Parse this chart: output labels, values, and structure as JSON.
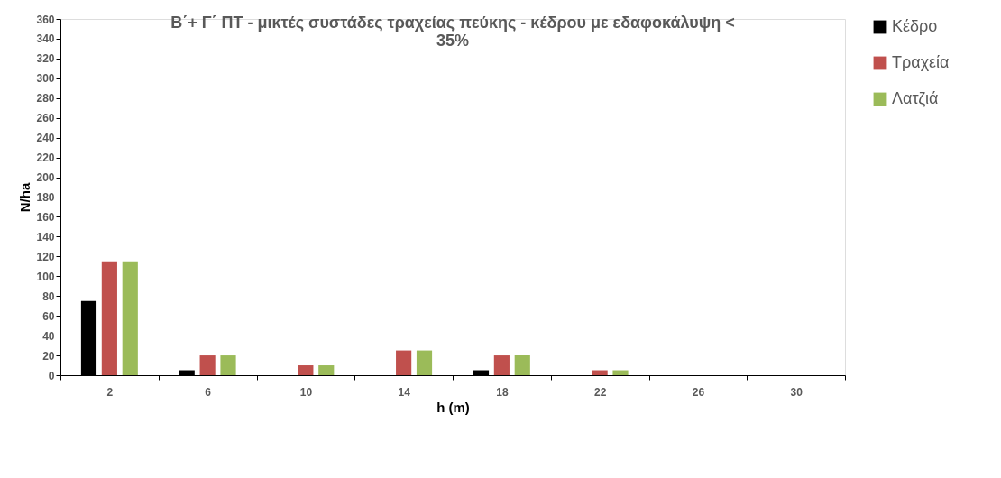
{
  "chart_data": {
    "type": "bar",
    "title": "Β΄+ Γ΄ ΠΤ - μικτές συστάδες τραχείας πεύκης - κέδρου με εδαφοκάλυψη < 35%",
    "xlabel": "h (m)",
    "ylabel": "N/ha",
    "categories": [
      "2",
      "6",
      "10",
      "14",
      "18",
      "22",
      "26",
      "30"
    ],
    "series": [
      {
        "name": "Κέδρο",
        "color": "#000000",
        "values": [
          75,
          5,
          0,
          0,
          5,
          0,
          0,
          0
        ]
      },
      {
        "name": "Τραχεία",
        "color": "#c0504d",
        "values": [
          115,
          20,
          10,
          25,
          20,
          5,
          0,
          0
        ]
      },
      {
        "name": "Λατζιά",
        "color": "#9bbb59",
        "values": [
          115,
          20,
          10,
          25,
          20,
          5,
          0,
          0
        ]
      }
    ],
    "ylim": [
      0,
      360
    ],
    "yticks": [
      0,
      20,
      40,
      60,
      80,
      100,
      120,
      140,
      160,
      180,
      200,
      220,
      240,
      260,
      280,
      300,
      320,
      340,
      360
    ],
    "grid": false,
    "legend": "right"
  }
}
